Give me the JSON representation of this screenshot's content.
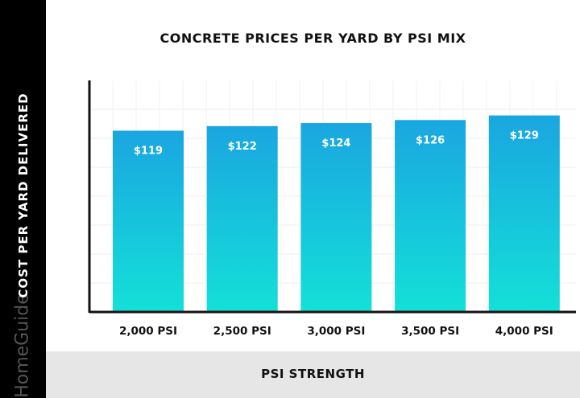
{
  "chart_data": {
    "type": "bar",
    "title": "CONCRETE PRICES PER YARD BY PSI MIX",
    "xlabel": "PSI STRENGTH",
    "ylabel": "COST PER YARD DELIVERED",
    "categories": [
      "2,000 PSI",
      "2,500 PSI",
      "3,000 PSI",
      "3,500 PSI",
      "4,000 PSI"
    ],
    "values": [
      119,
      122,
      124,
      126,
      129
    ],
    "data_labels": [
      "$119",
      "$122",
      "$124",
      "$126",
      "$129"
    ],
    "ylim": [
      0,
      152
    ],
    "grid": true,
    "colors": {
      "bar_top": "#1aa6e0",
      "bar_bottom": "#14e0d8"
    }
  },
  "watermark": "HomeGuide"
}
